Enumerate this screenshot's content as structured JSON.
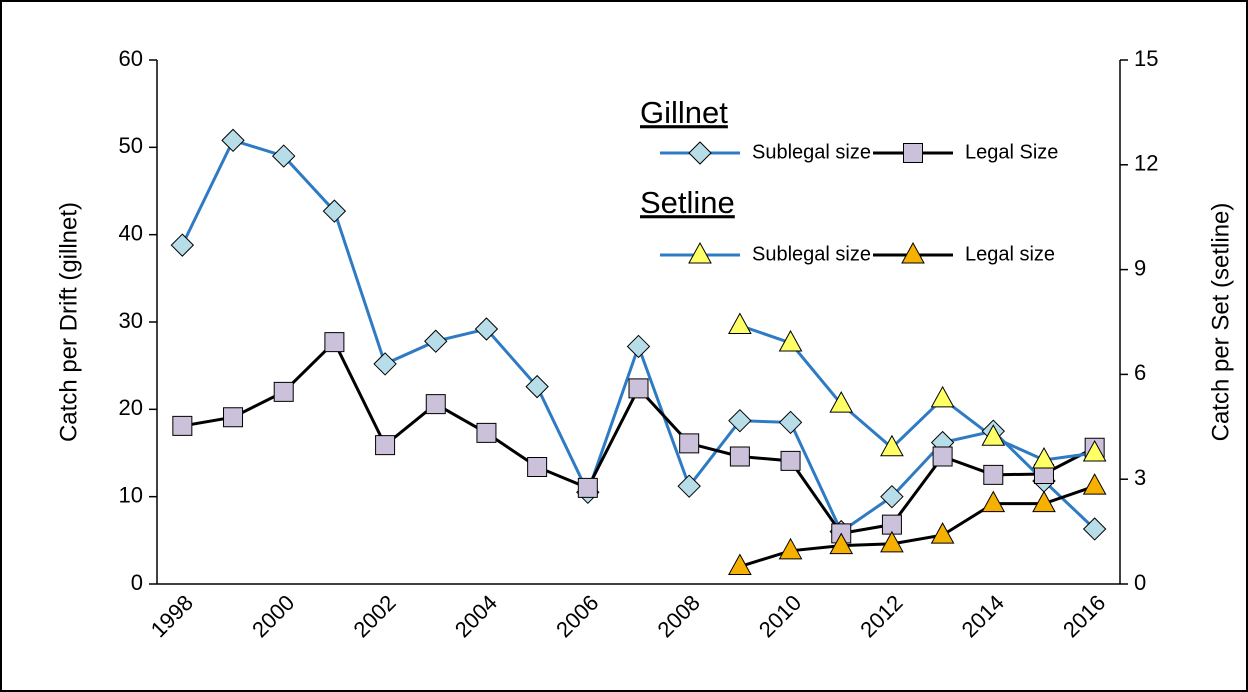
{
  "chart_data": {
    "type": "line",
    "categories": [
      "1998",
      null,
      "2000",
      null,
      "2002",
      null,
      "2004",
      null,
      "2006",
      null,
      "2008",
      null,
      "2010",
      null,
      "2012",
      null,
      "2014",
      null,
      "2016"
    ],
    "ylabel": "Catch per Drift (gillnet)",
    "y2label": "Catch per Set (setline)",
    "ylim": [
      0,
      60
    ],
    "yticks": [
      0,
      10,
      20,
      30,
      40,
      50,
      60
    ],
    "y2lim": [
      0,
      15
    ],
    "y2ticks": [
      0,
      3,
      6,
      9,
      12,
      15
    ],
    "legend_groups": [
      {
        "title": "Gillnet",
        "series": [
          0,
          1
        ]
      },
      {
        "title": "Setline",
        "series": [
          2,
          3
        ]
      }
    ],
    "series": [
      {
        "name": "Sublegal size",
        "color": "#2e7bc4",
        "marker": "diamond",
        "marker_color": "#b7dde8",
        "values": [
          38.8,
          50.8,
          49.0,
          42.7,
          25.2,
          27.8,
          29.2,
          22.6,
          10.5,
          27.2,
          11.2,
          18.7,
          18.5,
          6.0,
          10.0,
          16.2,
          17.5,
          11.8,
          6.3
        ]
      },
      {
        "name": "Legal Size",
        "color": "#000000",
        "marker": "square",
        "marker_color": "#ccc1da",
        "values": [
          18.1,
          19.1,
          22.0,
          27.7,
          15.9,
          20.6,
          17.3,
          13.4,
          11.0,
          22.4,
          16.1,
          14.6,
          14.1,
          5.8,
          6.8,
          14.6,
          12.5,
          12.6,
          15.6
        ]
      },
      {
        "name": "Sublegal size",
        "color": "#2e7bc4",
        "marker": "triangle",
        "marker_color": "#ffff66",
        "axis": "y2",
        "values": [
          null,
          null,
          null,
          null,
          null,
          null,
          null,
          null,
          null,
          null,
          null,
          7.4,
          6.9,
          5.15,
          3.9,
          5.3,
          4.2,
          3.55,
          3.75
        ]
      },
      {
        "name": "Legal size",
        "color": "#000000",
        "marker": "triangle",
        "marker_color": "#f5b000",
        "axis": "y2",
        "values": [
          null,
          null,
          null,
          null,
          null,
          null,
          null,
          null,
          null,
          null,
          null,
          0.5,
          0.95,
          1.1,
          1.15,
          1.4,
          2.3,
          2.3,
          2.8
        ]
      }
    ]
  }
}
